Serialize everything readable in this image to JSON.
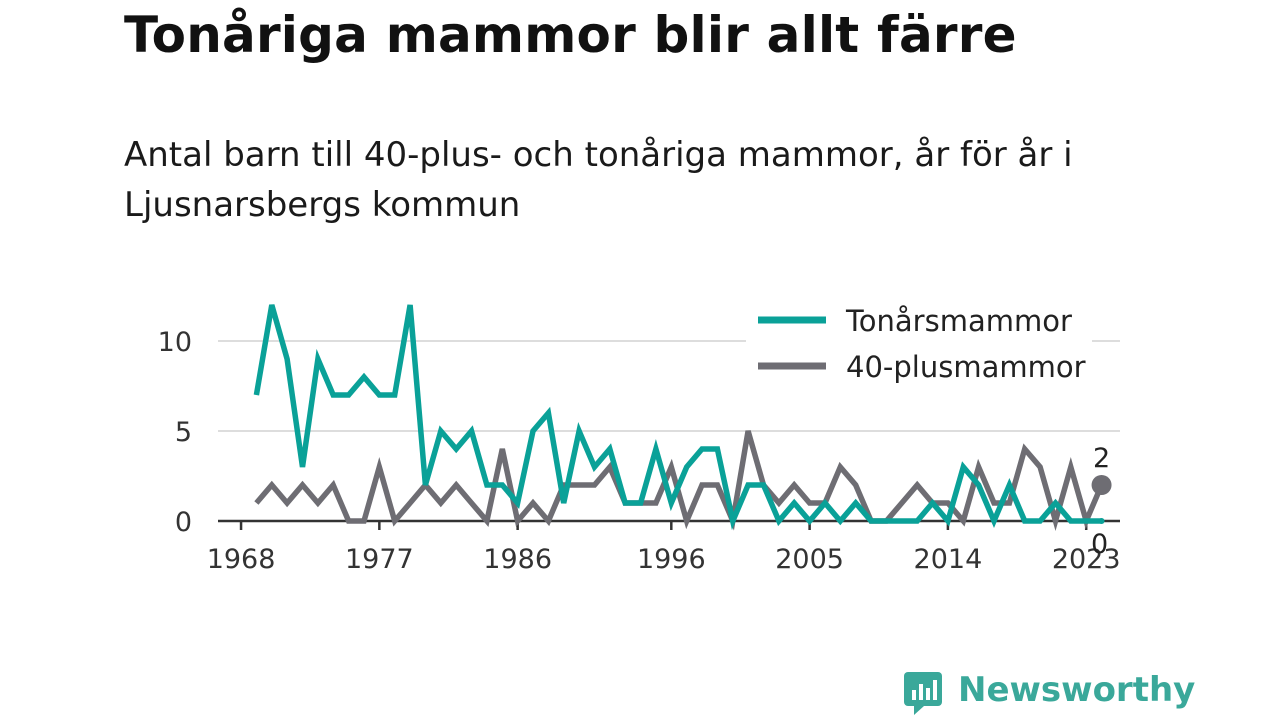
{
  "title": "Tonåriga mammor blir allt färre",
  "subtitle": "Antal barn till 40-plus- och tonåriga mammor, år för år i Ljusnarsbergs kommun",
  "colors": {
    "teen": "#0aa198",
    "forty": "#6e6d73",
    "grid": "#dddddd",
    "axis": "#333333",
    "brand": "#3aa89a"
  },
  "brand": {
    "name": "Newsworthy",
    "icon": "newsworthy-logo-icon"
  },
  "chart_data": {
    "type": "line",
    "x": [
      1969,
      1970,
      1971,
      1972,
      1973,
      1974,
      1975,
      1976,
      1977,
      1978,
      1979,
      1980,
      1981,
      1982,
      1983,
      1984,
      1985,
      1986,
      1987,
      1988,
      1989,
      1990,
      1991,
      1992,
      1993,
      1994,
      1995,
      1996,
      1997,
      1998,
      1999,
      2000,
      2001,
      2002,
      2003,
      2004,
      2005,
      2006,
      2007,
      2008,
      2009,
      2010,
      2011,
      2012,
      2013,
      2014,
      2015,
      2016,
      2017,
      2018,
      2019,
      2020,
      2021,
      2022,
      2023,
      2024
    ],
    "series": [
      {
        "name": "Tonårsmammor",
        "color": "#0aa198",
        "values": [
          7,
          12,
          9,
          3,
          9,
          7,
          7,
          8,
          7,
          7,
          12,
          2,
          5,
          4,
          5,
          2,
          2,
          1,
          5,
          6,
          1,
          5,
          3,
          4,
          1,
          1,
          4,
          1,
          3,
          4,
          4,
          0,
          2,
          2,
          0,
          1,
          0,
          1,
          0,
          1,
          0,
          0,
          0,
          0,
          1,
          0,
          3,
          2,
          0,
          2,
          0,
          0,
          1,
          0,
          0,
          0
        ]
      },
      {
        "name": "40-plusmammor",
        "color": "#6e6d73",
        "values": [
          1,
          2,
          1,
          2,
          1,
          2,
          0,
          0,
          3,
          0,
          1,
          2,
          1,
          2,
          1,
          0,
          4,
          0,
          1,
          0,
          2,
          2,
          2,
          3,
          1,
          1,
          1,
          3,
          0,
          2,
          2,
          0,
          5,
          2,
          1,
          2,
          1,
          1,
          3,
          2,
          0,
          0,
          1,
          2,
          1,
          1,
          0,
          3,
          1,
          1,
          4,
          3,
          0,
          3,
          0,
          2
        ]
      }
    ],
    "x_ticks": [
      "1968",
      "1977",
      "1986",
      "1996",
      "2005",
      "2014",
      "2023"
    ],
    "y_ticks": [
      "0",
      "5",
      "10"
    ],
    "ylim": [
      0,
      12
    ],
    "grid": true,
    "legend": "top-right",
    "end_labels": {
      "teen": "0",
      "forty": "2"
    }
  }
}
